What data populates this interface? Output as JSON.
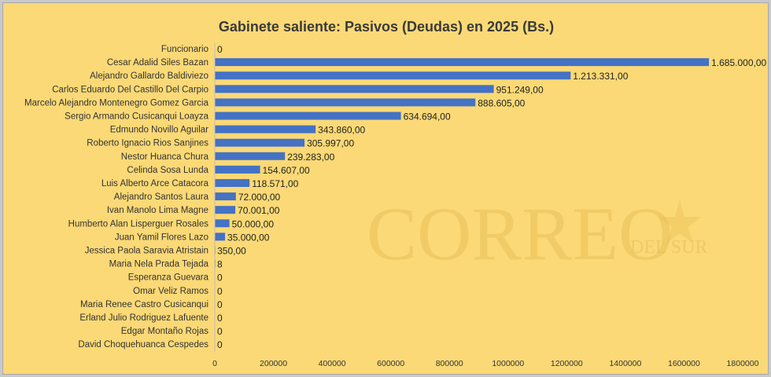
{
  "chart_data": {
    "type": "bar",
    "orientation": "horizontal",
    "title": "Gabinete saliente: Pasivos (Deudas) en 2025 (Bs.)",
    "xlabel": "",
    "ylabel": "",
    "xlim": [
      0,
      1800000
    ],
    "x_ticks": [
      "0",
      "200000",
      "400000",
      "600000",
      "800000",
      "1000000",
      "1200000",
      "1400000",
      "1600000",
      "1800000"
    ],
    "grid": false,
    "legend": "none",
    "bar_color": "#4472c4",
    "categories": [
      "Funcionario",
      "Cesar Adalid Siles Bazan",
      "Alejandro Gallardo Baldiviezo",
      "Carlos Eduardo Del Castillo Del Carpio",
      "Marcelo Alejandro Montenegro Gomez Garcia",
      "Sergio Armando Cusicanqui Loayza",
      "Edmundo Novillo Aguilar",
      "Roberto Ignacio Rios Sanjines",
      "Nestor Huanca Chura",
      "Celinda Sosa Lunda",
      "Luis Alberto Arce Catacora",
      "Alejandro Santos Laura",
      "Ivan Manolo Lima Magne",
      "Humberto Alan Lisperguer Rosales",
      "Juan Yamil Flores Lazo",
      "Jessica Paola Saravia Atristain",
      "Maria Nela Prada Tejada",
      "Esperanza Guevara",
      "Omar Veliz Ramos",
      "Maria Renee Castro Cusicanqui",
      "Erland Julio Rodriguez Lafuente",
      "Edgar Montaño Rojas",
      "David Choquehuanca Cespedes"
    ],
    "values": [
      0,
      1685000,
      1213331,
      951249,
      888605,
      634694,
      343860,
      305997,
      239283,
      154607,
      118571,
      72000,
      70001,
      50000,
      35000,
      350,
      8,
      0,
      0,
      0,
      0,
      0,
      0
    ],
    "data_labels": [
      "0",
      "1.685.000,00",
      "1.213.331,00",
      "951.249,00",
      "888.605,00",
      "634.694,00",
      "343.860,00",
      "305.997,00",
      "239.283,00",
      "154.607,00",
      "118.571,00",
      "72.000,00",
      "70.001,00",
      "50.000,00",
      "35.000,00",
      "350,00",
      "8",
      "0",
      "0",
      "0",
      "0",
      "0",
      "0"
    ]
  },
  "watermark": {
    "main": "CORREO",
    "sub": "DEL SUR"
  }
}
